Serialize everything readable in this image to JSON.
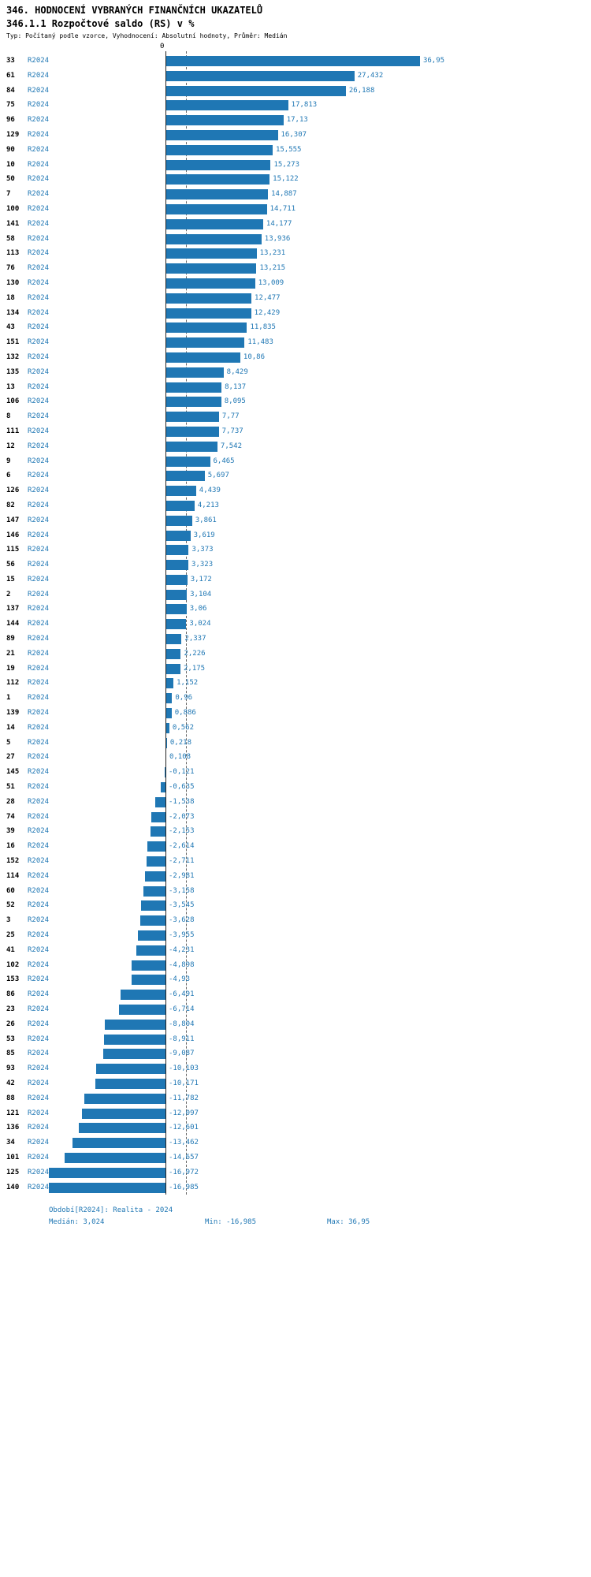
{
  "header": {
    "title": "346. HODNOCENÍ VYBRANÝCH FINANČNÍCH UKAZATELŮ",
    "subtitle": "346.1.1 Rozpočtové saldo (RS) v %",
    "meta": "Typ: Počítaný podle vzorce, Vyhodnocení: Absolutní hodnoty, Průměr: Medián"
  },
  "chart_data": {
    "type": "bar",
    "orientation": "horizontal",
    "title": "346.1.1 Rozpočtové saldo (RS) v %",
    "period_label": "R2024",
    "axis": {
      "zero_label": "0"
    },
    "median": "3,024",
    "min": "-16,985",
    "max": "36,95",
    "colors": {
      "bar": "#1f77b4",
      "accent_text": "#1f77b4",
      "axis_line": "#222222",
      "median_line": "#666666"
    },
    "rows": [
      {
        "id": "33",
        "value": "36,95"
      },
      {
        "id": "61",
        "value": "27,432"
      },
      {
        "id": "84",
        "value": "26,188"
      },
      {
        "id": "75",
        "value": "17,813"
      },
      {
        "id": "96",
        "value": "17,13"
      },
      {
        "id": "129",
        "value": "16,307"
      },
      {
        "id": "90",
        "value": "15,555"
      },
      {
        "id": "10",
        "value": "15,273"
      },
      {
        "id": "50",
        "value": "15,122"
      },
      {
        "id": "7",
        "value": "14,887"
      },
      {
        "id": "100",
        "value": "14,711"
      },
      {
        "id": "141",
        "value": "14,177"
      },
      {
        "id": "58",
        "value": "13,936"
      },
      {
        "id": "113",
        "value": "13,231"
      },
      {
        "id": "76",
        "value": "13,215"
      },
      {
        "id": "130",
        "value": "13,009"
      },
      {
        "id": "18",
        "value": "12,477"
      },
      {
        "id": "134",
        "value": "12,429"
      },
      {
        "id": "43",
        "value": "11,835"
      },
      {
        "id": "151",
        "value": "11,483"
      },
      {
        "id": "132",
        "value": "10,86"
      },
      {
        "id": "135",
        "value": "8,429"
      },
      {
        "id": "13",
        "value": "8,137"
      },
      {
        "id": "106",
        "value": "8,095"
      },
      {
        "id": "8",
        "value": "7,77"
      },
      {
        "id": "111",
        "value": "7,737"
      },
      {
        "id": "12",
        "value": "7,542"
      },
      {
        "id": "9",
        "value": "6,465"
      },
      {
        "id": "6",
        "value": "5,697"
      },
      {
        "id": "126",
        "value": "4,439"
      },
      {
        "id": "82",
        "value": "4,213"
      },
      {
        "id": "147",
        "value": "3,861"
      },
      {
        "id": "146",
        "value": "3,619"
      },
      {
        "id": "115",
        "value": "3,373"
      },
      {
        "id": "56",
        "value": "3,323"
      },
      {
        "id": "15",
        "value": "3,172"
      },
      {
        "id": "2",
        "value": "3,104"
      },
      {
        "id": "137",
        "value": "3,06"
      },
      {
        "id": "144",
        "value": "3,024"
      },
      {
        "id": "89",
        "value": "2,337"
      },
      {
        "id": "21",
        "value": "2,226"
      },
      {
        "id": "19",
        "value": "2,175"
      },
      {
        "id": "112",
        "value": "1,152"
      },
      {
        "id": "1",
        "value": "0,96"
      },
      {
        "id": "139",
        "value": "0,886"
      },
      {
        "id": "14",
        "value": "0,562"
      },
      {
        "id": "5",
        "value": "0,218"
      },
      {
        "id": "27",
        "value": "0,108"
      },
      {
        "id": "145",
        "value": "-0,121"
      },
      {
        "id": "51",
        "value": "-0,635"
      },
      {
        "id": "28",
        "value": "-1,538"
      },
      {
        "id": "74",
        "value": "-2,073"
      },
      {
        "id": "39",
        "value": "-2,153"
      },
      {
        "id": "16",
        "value": "-2,614"
      },
      {
        "id": "152",
        "value": "-2,711"
      },
      {
        "id": "114",
        "value": "-2,981"
      },
      {
        "id": "60",
        "value": "-3,158"
      },
      {
        "id": "52",
        "value": "-3,545"
      },
      {
        "id": "3",
        "value": "-3,628"
      },
      {
        "id": "25",
        "value": "-3,955"
      },
      {
        "id": "41",
        "value": "-4,231"
      },
      {
        "id": "102",
        "value": "-4,898"
      },
      {
        "id": "153",
        "value": "-4,93"
      },
      {
        "id": "86",
        "value": "-6,491"
      },
      {
        "id": "23",
        "value": "-6,714"
      },
      {
        "id": "26",
        "value": "-8,804"
      },
      {
        "id": "53",
        "value": "-8,911"
      },
      {
        "id": "85",
        "value": "-9,087"
      },
      {
        "id": "93",
        "value": "-10,103"
      },
      {
        "id": "42",
        "value": "-10,171"
      },
      {
        "id": "88",
        "value": "-11,782"
      },
      {
        "id": "121",
        "value": "-12,097"
      },
      {
        "id": "136",
        "value": "-12,601"
      },
      {
        "id": "34",
        "value": "-13,462"
      },
      {
        "id": "101",
        "value": "-14,657"
      },
      {
        "id": "125",
        "value": "-16,972"
      },
      {
        "id": "140",
        "value": "-16,985"
      }
    ],
    "footer": {
      "period_note": "Období[R2024]: Realita - 2024",
      "median": "Medián: 3,024",
      "min": "Min: -16,985",
      "max": "Max: 36,95"
    }
  }
}
